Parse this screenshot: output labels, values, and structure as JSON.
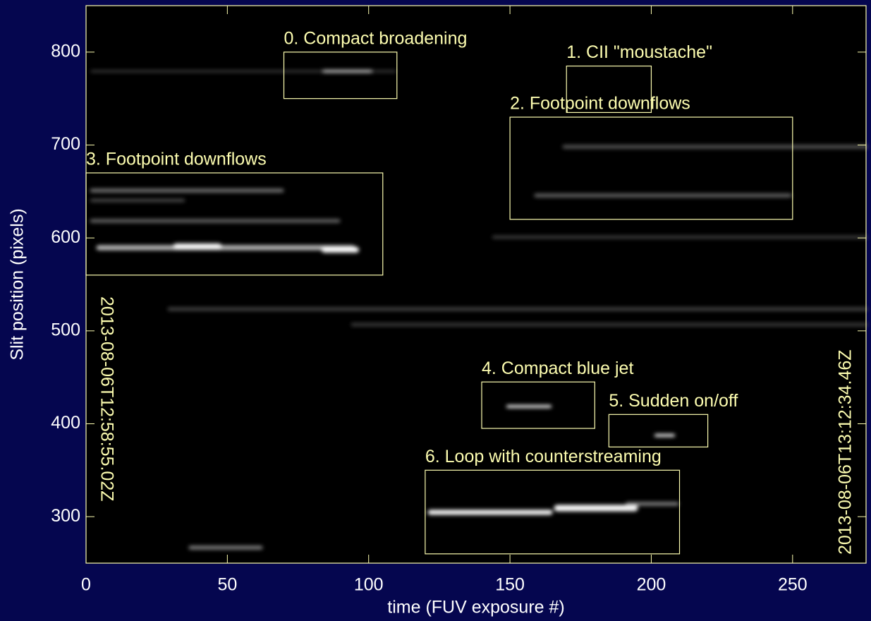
{
  "chart_data": {
    "type": "image",
    "xlabel": "time (FUV exposure #)",
    "ylabel": "Slit position (pixels)",
    "xlim": [
      0,
      276
    ],
    "xticks": [
      0,
      50,
      100,
      150,
      200,
      250
    ],
    "ylim": [
      250,
      850
    ],
    "yticks": [
      300,
      400,
      500,
      600,
      700,
      800
    ],
    "annotation_color": "#fdfdb0",
    "annotations": [
      {
        "label": "0. Compact broadening",
        "x": [
          70,
          110
        ],
        "y": [
          750,
          800
        ]
      },
      {
        "label": "1. CII \"moustache\"",
        "x": [
          170,
          200
        ],
        "y": [
          735,
          785
        ]
      },
      {
        "label": "2. Footpoint downflows",
        "x": [
          150,
          250
        ],
        "y": [
          620,
          730
        ]
      },
      {
        "label": "3. Footpoint downflows",
        "x": [
          0,
          105
        ],
        "y": [
          560,
          670
        ]
      },
      {
        "label": "4. Compact blue jet",
        "x": [
          140,
          180
        ],
        "y": [
          395,
          445
        ]
      },
      {
        "label": "5. Sudden on/off",
        "x": [
          185,
          220
        ],
        "y": [
          375,
          410
        ]
      },
      {
        "label": "6. Loop with counterstreaming",
        "x": [
          120,
          210
        ],
        "y": [
          260,
          350
        ]
      }
    ],
    "left_label": "2013-08-06T12:58:55.02Z",
    "right_label": "2013-08-06T13:12:34.46Z"
  }
}
